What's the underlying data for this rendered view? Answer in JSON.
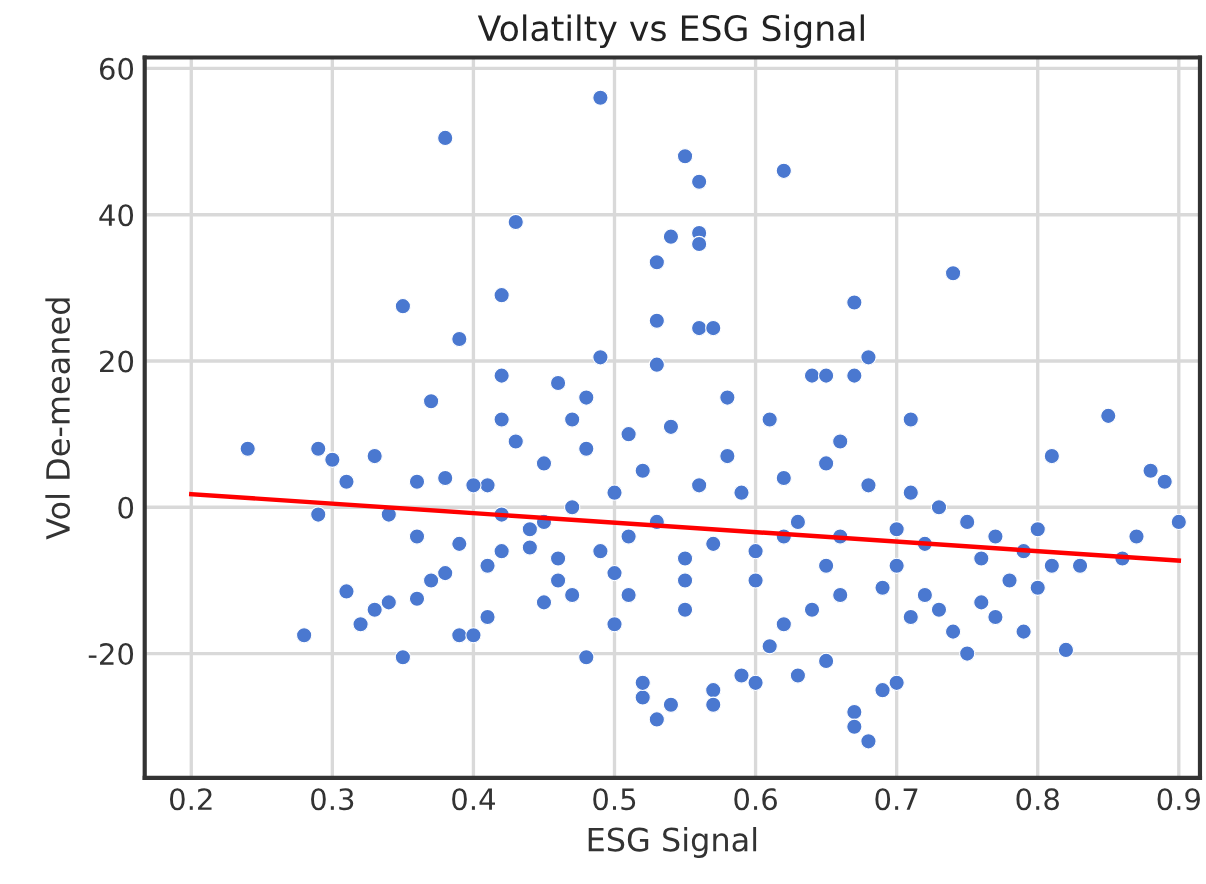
{
  "chart_data": {
    "type": "scatter",
    "title": "Volatilty vs ESG Signal",
    "xlabel": "ESG Signal",
    "ylabel": "Vol De-meaned",
    "xlim": [
      0.167,
      0.915
    ],
    "ylim": [
      -37,
      61.5
    ],
    "xticks": [
      0.2,
      0.3,
      0.4,
      0.5,
      0.6,
      0.7,
      0.8,
      0.9
    ],
    "yticks": [
      -20,
      0,
      20,
      40,
      60
    ],
    "grid": true,
    "marker": "circle",
    "series": [
      {
        "color": "#4a78d0",
        "x": [
          0.49,
          0.38,
          0.55,
          0.56,
          0.62,
          0.54,
          0.56,
          0.56,
          0.43,
          0.53,
          0.74,
          0.67,
          0.42,
          0.35,
          0.39,
          0.53,
          0.56,
          0.57,
          0.68,
          0.67,
          0.53,
          0.64,
          0.65,
          0.49,
          0.37,
          0.42,
          0.46,
          0.48,
          0.42,
          0.71,
          0.85,
          0.81,
          0.88,
          0.89,
          0.9,
          0.24,
          0.29,
          0.3,
          0.31,
          0.33,
          0.36,
          0.29,
          0.34,
          0.28,
          0.31,
          0.32,
          0.33,
          0.34,
          0.35,
          0.36,
          0.37,
          0.38,
          0.39,
          0.4,
          0.41,
          0.41,
          0.42,
          0.44,
          0.45,
          0.46,
          0.47,
          0.48,
          0.5,
          0.51,
          0.52,
          0.52,
          0.53,
          0.54,
          0.5,
          0.55,
          0.57,
          0.57,
          0.59,
          0.6,
          0.61,
          0.62,
          0.63,
          0.64,
          0.65,
          0.66,
          0.67,
          0.67,
          0.68,
          0.69,
          0.7,
          0.71,
          0.72,
          0.73,
          0.74,
          0.75,
          0.76,
          0.77,
          0.78,
          0.79,
          0.8,
          0.81,
          0.82,
          0.83,
          0.86,
          0.87,
          0.8,
          0.77,
          0.75,
          0.73,
          0.71,
          0.7,
          0.68,
          0.66,
          0.65,
          0.63,
          0.62,
          0.6,
          0.59,
          0.58,
          0.57,
          0.56,
          0.55,
          0.54,
          0.53,
          0.52,
          0.51,
          0.5,
          0.49,
          0.48,
          0.47,
          0.46,
          0.45,
          0.44,
          0.43,
          0.42,
          0.41,
          0.4,
          0.39,
          0.38,
          0.36,
          0.45,
          0.55,
          0.6,
          0.65,
          0.7,
          0.72,
          0.66,
          0.61,
          0.58,
          0.51,
          0.47,
          0.62,
          0.69,
          0.76,
          0.79
        ],
        "values": [
          56,
          50.5,
          48,
          44.5,
          46,
          37,
          37.5,
          36,
          39,
          33.5,
          32,
          28,
          29,
          27.5,
          23,
          25.5,
          24.5,
          24.5,
          20.5,
          18,
          19.5,
          18,
          18,
          20.5,
          14.5,
          18,
          17,
          15,
          12,
          12,
          12.5,
          7,
          5,
          3.5,
          -2,
          8,
          8,
          6.5,
          3.5,
          7,
          3.5,
          -1,
          -1,
          -17.5,
          -11.5,
          -16,
          -14,
          -13,
          -20.5,
          -12.5,
          -10,
          -9,
          -17.5,
          -17.5,
          -15,
          -8,
          -6,
          -5.5,
          -2,
          -7,
          -12,
          -20.5,
          -9,
          -12,
          -26,
          -24,
          -29,
          -27,
          -16,
          -14,
          -25,
          -27,
          -23,
          -24,
          -19,
          -16,
          -23,
          -14,
          -21,
          -12,
          -28,
          -30,
          -32,
          -25,
          -24,
          -15,
          -12,
          -14,
          -17,
          -20,
          -13,
          -15,
          -10,
          -17,
          -11,
          -8,
          -19.5,
          -8,
          -7,
          -4,
          -3,
          -4,
          -2,
          0,
          2,
          -3,
          3,
          -4,
          6,
          -2,
          4,
          -6,
          2,
          7,
          -5,
          3,
          -7,
          11,
          -2,
          5,
          -4,
          2,
          -6,
          8,
          0,
          -10,
          6,
          -3,
          9,
          -1,
          3,
          3,
          -5,
          4,
          -4,
          -13,
          -10,
          -10,
          -8,
          -8,
          -5,
          9,
          12,
          15,
          10,
          12,
          -4,
          -11,
          -7,
          -6
        ]
      },
      {
        "type": "line",
        "color": "#ff0000",
        "marker": "none",
        "x": [
          0.2,
          0.9
        ],
        "values": [
          1.8,
          -7.3
        ]
      }
    ]
  }
}
